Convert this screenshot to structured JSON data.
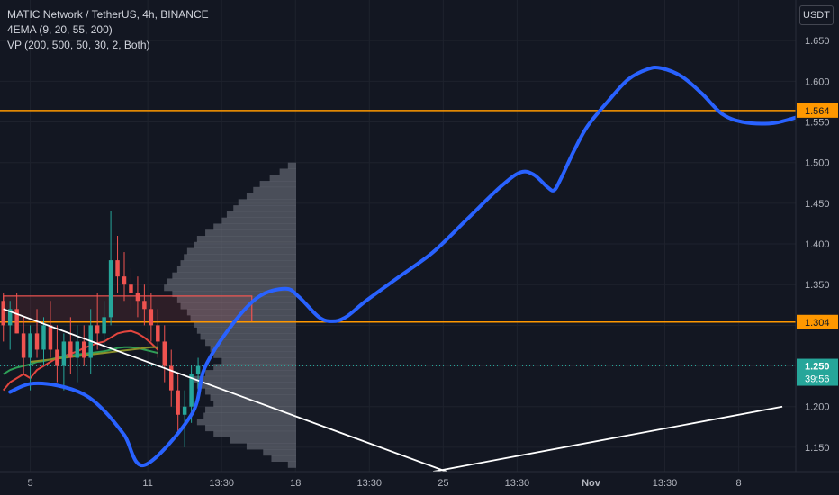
{
  "legend": {
    "symbol": "MATIC Network / TetherUS, 4h, BINANCE",
    "ema": "4EMA (9, 20, 55, 200)",
    "vp": "VP (200, 500, 50, 30, 2, Both)"
  },
  "currency": "USDT",
  "colors": {
    "background": "#131722",
    "grid": "#1e222d",
    "axis_text": "#b2b5be",
    "up": "#26a69a",
    "down": "#ef5350",
    "projection": "#2962ff",
    "horizontal_level": "#ff9800",
    "trendline": "#ffffff",
    "ema_red": "#e2453e",
    "ema_green": "#2e9e57",
    "ema_olive": "#8a8f2a",
    "volume_profile": "#787b86"
  },
  "chart_data": {
    "type": "candlestick",
    "title": "MATIC Network / TetherUS, 4h, BINANCE",
    "ylim": [
      1.12,
      1.7
    ],
    "y_ticks": [
      "1.650",
      "1.600",
      "1.550",
      "1.500",
      "1.450",
      "1.400",
      "1.350",
      "1.300",
      "1.250",
      "1.200",
      "1.150"
    ],
    "x_ticks": [
      "5",
      "11",
      "13:30",
      "18",
      "13:30",
      "25",
      "13:30",
      "Nov",
      "13:30",
      "8"
    ],
    "x_tick_index": [
      0,
      17.5,
      28.5,
      39.5,
      50.5,
      61.5,
      72.5,
      83.5,
      94.5,
      105.5
    ],
    "x_index_range": [
      -4.5,
      114
    ],
    "candles": [
      [
        1.33,
        1.34,
        1.28,
        1.3
      ],
      [
        1.3,
        1.33,
        1.27,
        1.32
      ],
      [
        1.32,
        1.34,
        1.29,
        1.29
      ],
      [
        1.29,
        1.31,
        1.24,
        1.26
      ],
      [
        1.26,
        1.3,
        1.22,
        1.29
      ],
      [
        1.29,
        1.32,
        1.26,
        1.27
      ],
      [
        1.27,
        1.31,
        1.25,
        1.3
      ],
      [
        1.3,
        1.33,
        1.26,
        1.27
      ],
      [
        1.27,
        1.3,
        1.23,
        1.25
      ],
      [
        1.25,
        1.29,
        1.22,
        1.28
      ],
      [
        1.28,
        1.31,
        1.24,
        1.26
      ],
      [
        1.26,
        1.3,
        1.23,
        1.28
      ],
      [
        1.28,
        1.3,
        1.25,
        1.26
      ],
      [
        1.26,
        1.32,
        1.24,
        1.3
      ],
      [
        1.3,
        1.34,
        1.27,
        1.29
      ],
      [
        1.29,
        1.33,
        1.27,
        1.31
      ],
      [
        1.31,
        1.44,
        1.3,
        1.38
      ],
      [
        1.38,
        1.41,
        1.34,
        1.36
      ],
      [
        1.36,
        1.39,
        1.33,
        1.35
      ],
      [
        1.35,
        1.37,
        1.32,
        1.34
      ],
      [
        1.34,
        1.36,
        1.31,
        1.33
      ],
      [
        1.33,
        1.35,
        1.3,
        1.32
      ],
      [
        1.32,
        1.34,
        1.28,
        1.3
      ],
      [
        1.3,
        1.32,
        1.26,
        1.28
      ],
      [
        1.28,
        1.3,
        1.23,
        1.25
      ],
      [
        1.25,
        1.27,
        1.2,
        1.22
      ],
      [
        1.22,
        1.24,
        1.17,
        1.19
      ],
      [
        1.19,
        1.22,
        1.15,
        1.2
      ],
      [
        1.2,
        1.25,
        1.18,
        1.24
      ],
      [
        1.24,
        1.26,
        1.22,
        1.25
      ]
    ],
    "candle_index_start": -4,
    "ema_series": [
      {
        "values_start": -4,
        "values": [
          1.22,
          1.23,
          1.235,
          1.24,
          1.235,
          1.245,
          1.25,
          1.255,
          1.26,
          1.262,
          1.265,
          1.268,
          1.272,
          1.275,
          1.278,
          1.28,
          1.285,
          1.29,
          1.292,
          1.293,
          1.29,
          1.285,
          1.278,
          1.27
        ]
      },
      {
        "values_start": -4,
        "values": [
          1.24,
          1.245,
          1.248,
          1.25,
          1.252,
          1.255,
          1.256,
          1.258,
          1.26,
          1.262,
          1.263,
          1.264,
          1.265,
          1.266,
          1.267,
          1.268,
          1.27,
          1.272,
          1.273,
          1.273,
          1.272,
          1.27,
          1.268,
          1.266
        ]
      },
      {
        "values_start": 0,
        "values": [
          1.255,
          1.256,
          1.257,
          1.258,
          1.259,
          1.26,
          1.261,
          1.262,
          1.263,
          1.264,
          1.265,
          1.266,
          1.267,
          1.268,
          1.269,
          1.27,
          1.271,
          1.272,
          1.273,
          1.273
        ]
      }
    ],
    "volume_profile": {
      "price_start": 1.125,
      "price_step": 0.0075,
      "relative": [
        0.05,
        0.15,
        0.2,
        0.3,
        0.4,
        0.5,
        0.55,
        0.6,
        0.56,
        0.55,
        0.5,
        0.52,
        0.55,
        0.6,
        0.62,
        0.55,
        0.5,
        0.45,
        0.5,
        0.52,
        0.55,
        0.58,
        0.6,
        0.62,
        0.64,
        0.66,
        0.7,
        0.72,
        0.75,
        0.8,
        0.78,
        0.75,
        0.72,
        0.7,
        0.68,
        0.66,
        0.62,
        0.6,
        0.55,
        0.5,
        0.45,
        0.42,
        0.38,
        0.35,
        0.3,
        0.26,
        0.22,
        0.16,
        0.1,
        0.05
      ]
    },
    "projection_path": [
      [
        -3,
        1.218
      ],
      [
        0,
        1.228
      ],
      [
        4,
        1.226
      ],
      [
        8,
        1.215
      ],
      [
        11,
        1.195
      ],
      [
        14,
        1.165
      ],
      [
        17,
        1.128
      ],
      [
        24,
        1.19
      ],
      [
        26,
        1.248
      ],
      [
        30,
        1.3
      ],
      [
        34,
        1.335
      ],
      [
        38,
        1.345
      ],
      [
        40,
        1.335
      ],
      [
        43,
        1.31
      ],
      [
        45,
        1.305
      ],
      [
        47,
        1.31
      ],
      [
        50,
        1.33
      ],
      [
        55,
        1.36
      ],
      [
        60,
        1.39
      ],
      [
        65,
        1.43
      ],
      [
        70,
        1.47
      ],
      [
        73,
        1.488
      ],
      [
        75,
        1.485
      ],
      [
        77,
        1.47
      ],
      [
        78,
        1.466
      ],
      [
        79,
        1.48
      ],
      [
        81,
        1.515
      ],
      [
        83,
        1.545
      ],
      [
        86,
        1.575
      ],
      [
        89,
        1.602
      ],
      [
        92,
        1.615
      ],
      [
        94,
        1.616
      ],
      [
        97,
        1.606
      ],
      [
        100,
        1.585
      ],
      [
        103,
        1.56
      ],
      [
        106,
        1.55
      ],
      [
        110,
        1.548
      ],
      [
        113,
        1.553
      ],
      [
        118,
        1.566
      ]
    ],
    "level_lines": [
      {
        "price": 1.564,
        "label": "1.564"
      },
      {
        "price": 1.304,
        "label": "1.304"
      }
    ],
    "red_box": {
      "x_from": -4,
      "x_to": 33,
      "price_high": 1.336,
      "price_low": 1.304
    },
    "trendlines": [
      {
        "from": [
          -4,
          1.32
        ],
        "to": [
          62,
          1.12
        ]
      },
      {
        "from": [
          60,
          1.12
        ],
        "to": [
          112,
          1.2
        ]
      }
    ],
    "last_price": {
      "price": 1.25,
      "label": "1.250",
      "countdown": "39:56"
    }
  }
}
